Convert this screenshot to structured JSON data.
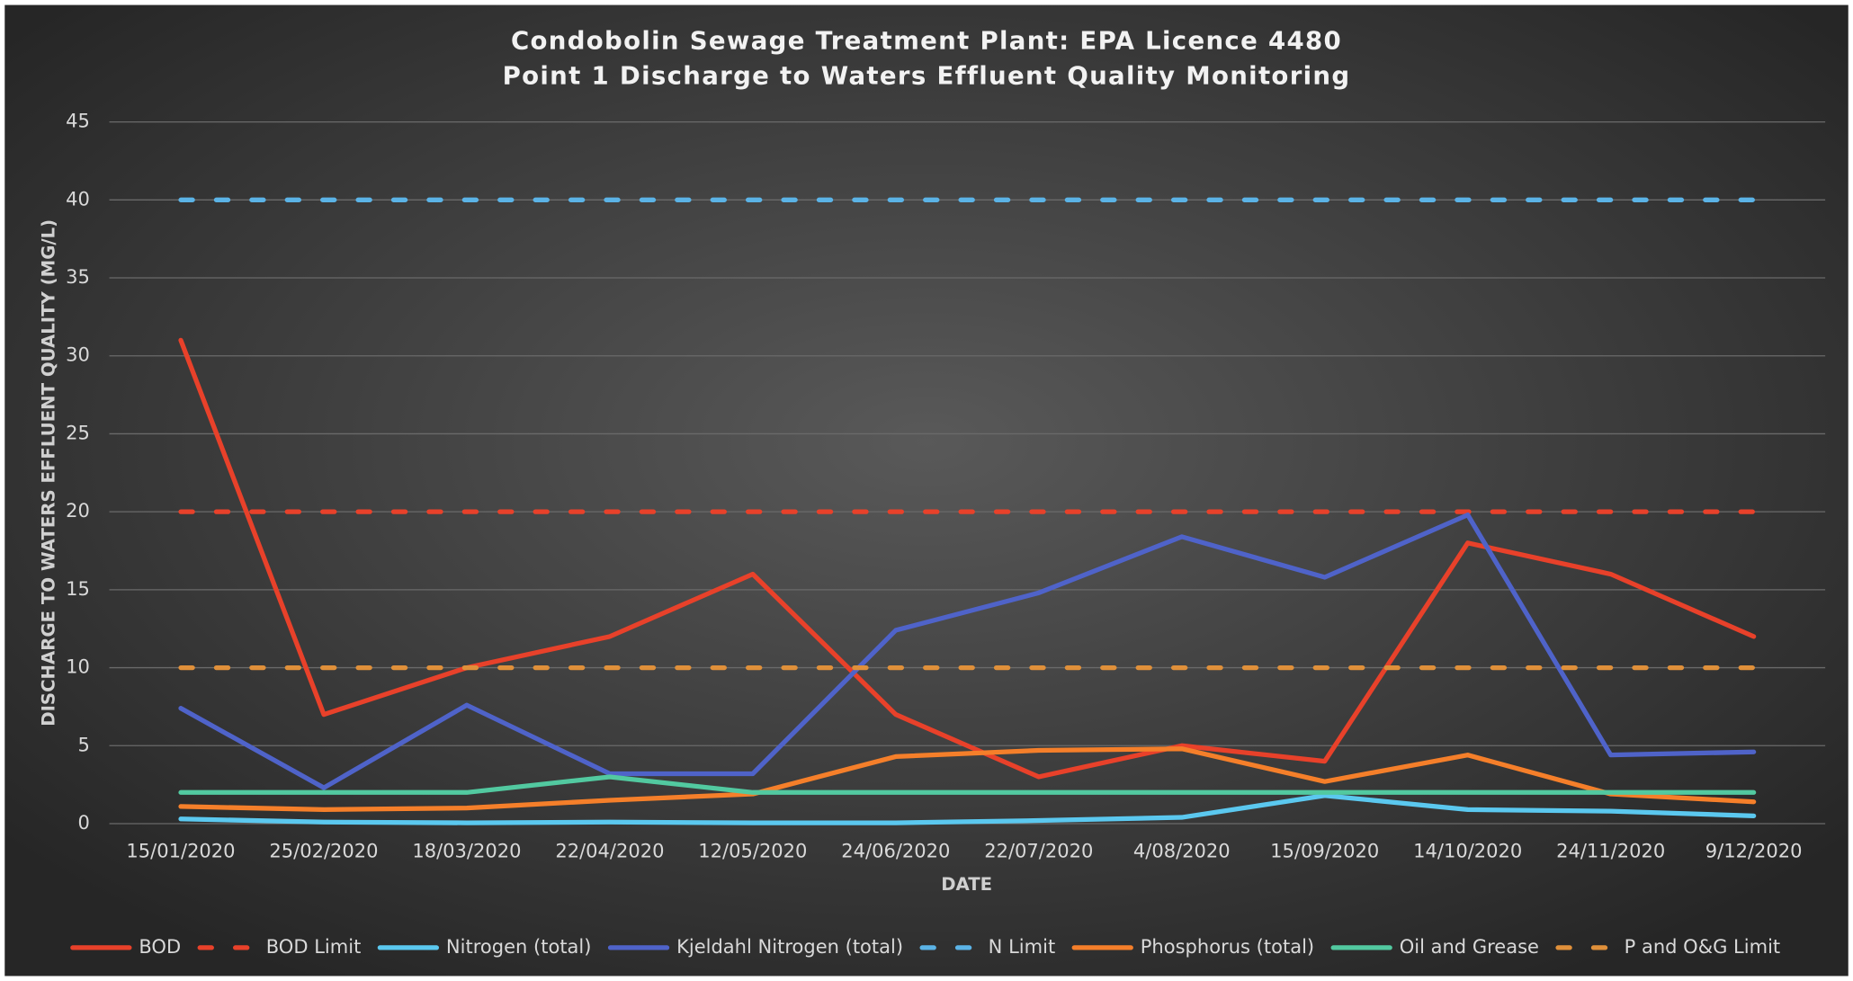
{
  "chart_data": {
    "type": "line",
    "title": "Condobolin Sewage Treatment Plant: EPA Licence 4480",
    "subtitle": "Point 1 Discharge to Waters Effluent Quality Monitoring",
    "x_label": "DATE",
    "y_label": "DISCHARGE TO WATERS EFFLUENT QUALITY (MG/L)",
    "categories": [
      "15/01/2020",
      "25/02/2020",
      "18/03/2020",
      "22/04/2020",
      "12/05/2020",
      "24/06/2020",
      "22/07/2020",
      "4/08/2020",
      "15/09/2020",
      "14/10/2020",
      "24/11/2020",
      "9/12/2020"
    ],
    "ylim": [
      0,
      45
    ],
    "yticks": [
      0,
      5,
      10,
      15,
      20,
      25,
      30,
      35,
      40,
      45
    ],
    "grid": true,
    "legend": "bottom",
    "series": [
      {
        "name": "BOD",
        "color": "#e8412a",
        "dashed": false,
        "values": [
          31,
          7,
          10,
          12,
          16,
          7,
          3,
          5,
          4,
          18,
          16,
          12
        ]
      },
      {
        "name": "BOD Limit",
        "color": "#e8412a",
        "dashed": true,
        "values": [
          20,
          20,
          20,
          20,
          20,
          20,
          20,
          20,
          20,
          20,
          20,
          20
        ]
      },
      {
        "name": "Nitrogen (total)",
        "color": "#5bc8ef",
        "dashed": false,
        "values": [
          0.3,
          0.1,
          0.05,
          0.1,
          0.05,
          0.05,
          0.2,
          0.4,
          1.8,
          0.9,
          0.8,
          0.5
        ]
      },
      {
        "name": "Kjeldahl Nitrogen (total)",
        "color": "#4f63c9",
        "dashed": false,
        "values": [
          7.4,
          2.3,
          7.6,
          3.2,
          3.2,
          12.4,
          14.8,
          18.4,
          15.8,
          19.8,
          4.4,
          4.6
        ]
      },
      {
        "name": "N Limit",
        "color": "#5bb3e6",
        "dashed": true,
        "values": [
          40,
          40,
          40,
          40,
          40,
          40,
          40,
          40,
          40,
          40,
          40,
          40
        ]
      },
      {
        "name": "Phosphorus (total)",
        "color": "#f57f2a",
        "dashed": false,
        "values": [
          1.1,
          0.9,
          1.0,
          1.5,
          1.9,
          4.3,
          4.7,
          4.8,
          2.7,
          4.4,
          1.9,
          1.4
        ]
      },
      {
        "name": "Oil and Grease",
        "color": "#52c9a0",
        "dashed": false,
        "values": [
          2,
          2,
          2,
          3,
          2,
          2,
          2,
          2,
          2,
          2,
          2,
          2
        ]
      },
      {
        "name": "P and O&G Limit",
        "color": "#e0903a",
        "dashed": true,
        "values": [
          10,
          10,
          10,
          10,
          10,
          10,
          10,
          10,
          10,
          10,
          10,
          10
        ]
      }
    ]
  }
}
